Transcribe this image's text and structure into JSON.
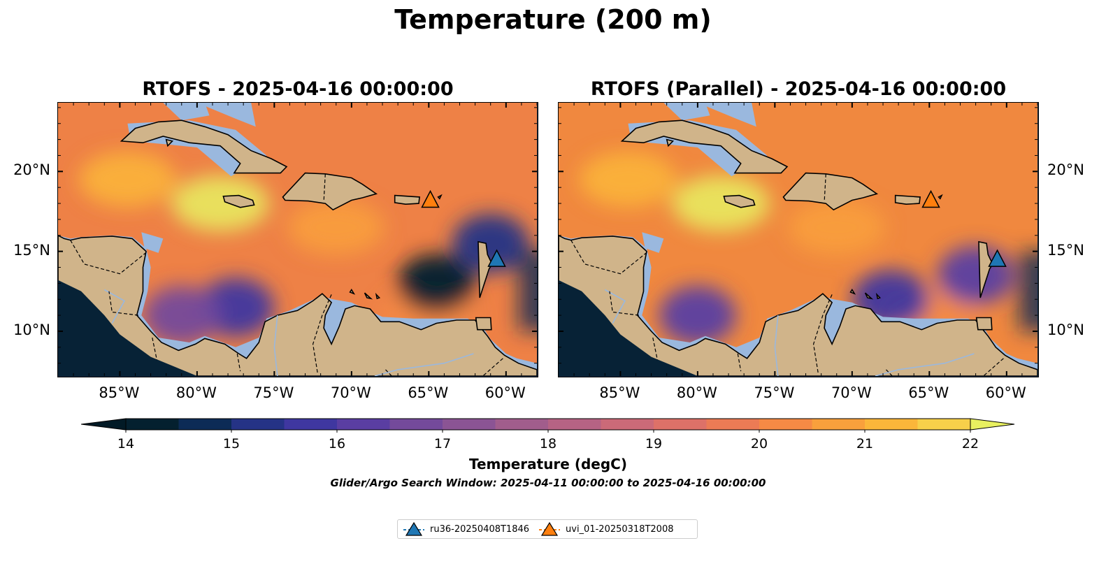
{
  "figure": {
    "title": "Temperature (200 m)",
    "note": "Glider/Argo Search Window: 2025-04-11 00:00:00 to 2025-04-16 00:00:00"
  },
  "panels": [
    {
      "title": "RTOFS - 2025-04-16 00:00:00"
    },
    {
      "title": "RTOFS (Parallel) - 2025-04-16 00:00:00"
    }
  ],
  "axes": {
    "lon_ticks": [
      "85°W",
      "80°W",
      "75°W",
      "70°W",
      "65°W",
      "60°W"
    ],
    "lat_ticks": [
      "20°N",
      "15°N",
      "10°N"
    ],
    "lon_range": [
      -89,
      -58
    ],
    "lat_range": [
      7.2,
      24.3
    ]
  },
  "colorbar": {
    "label": "Temperature (degC)",
    "ticks": [
      "14",
      "15",
      "16",
      "17",
      "18",
      "19",
      "20",
      "21",
      "22"
    ],
    "range": [
      14,
      22
    ],
    "step": 0.5,
    "extend": "both"
  },
  "legend": {
    "items": [
      {
        "label": "ru36-20250408T1846",
        "color": "#1f77b4",
        "marker": "triangle"
      },
      {
        "label": "uvi_01-20250318T2008",
        "color": "#ff7f0e",
        "marker": "triangle"
      }
    ]
  },
  "chart_data": {
    "type": "heatmap",
    "title": "Temperature (200 m)",
    "variable": "Temperature (degC)",
    "colormap": "thermal",
    "vmin": 14,
    "vmax": 22,
    "xlabel": "",
    "ylabel": "",
    "xlim": [
      -89,
      -58
    ],
    "ylim": [
      7.2,
      24.3
    ],
    "glider_points": [
      {
        "name": "ru36-20250408T1846",
        "lon": -60.6,
        "lat": 14.5,
        "color": "#1f77b4"
      },
      {
        "name": "uvi_01-20250318T2008",
        "lon": -64.9,
        "lat": 18.2,
        "color": "#ff7f0e"
      }
    ],
    "warm_pools": [
      {
        "lon": -78.5,
        "lat": 18.0,
        "temp": 22
      },
      {
        "lon": -84.5,
        "lat": 19.5,
        "temp": 21
      },
      {
        "lon": -71.0,
        "lat": 16.5,
        "temp": 20.5
      },
      {
        "lon": -65.0,
        "lat": 11.0,
        "temp": 20
      }
    ],
    "cold_cores_rtofs": [
      {
        "lon": -64.5,
        "lat": 13.0,
        "temp": 14
      },
      {
        "lon": -61.0,
        "lat": 15.5,
        "temp": 15
      },
      {
        "lon": -77.5,
        "lat": 11.5,
        "temp": 15.5
      },
      {
        "lon": -81.0,
        "lat": 11.0,
        "temp": 16.5
      }
    ],
    "cold_cores_parallel": [
      {
        "lon": -67.5,
        "lat": 12.0,
        "temp": 15.5
      },
      {
        "lon": -80.0,
        "lat": 11.0,
        "temp": 16
      },
      {
        "lon": -62.0,
        "lat": 13.5,
        "temp": 16
      }
    ]
  }
}
